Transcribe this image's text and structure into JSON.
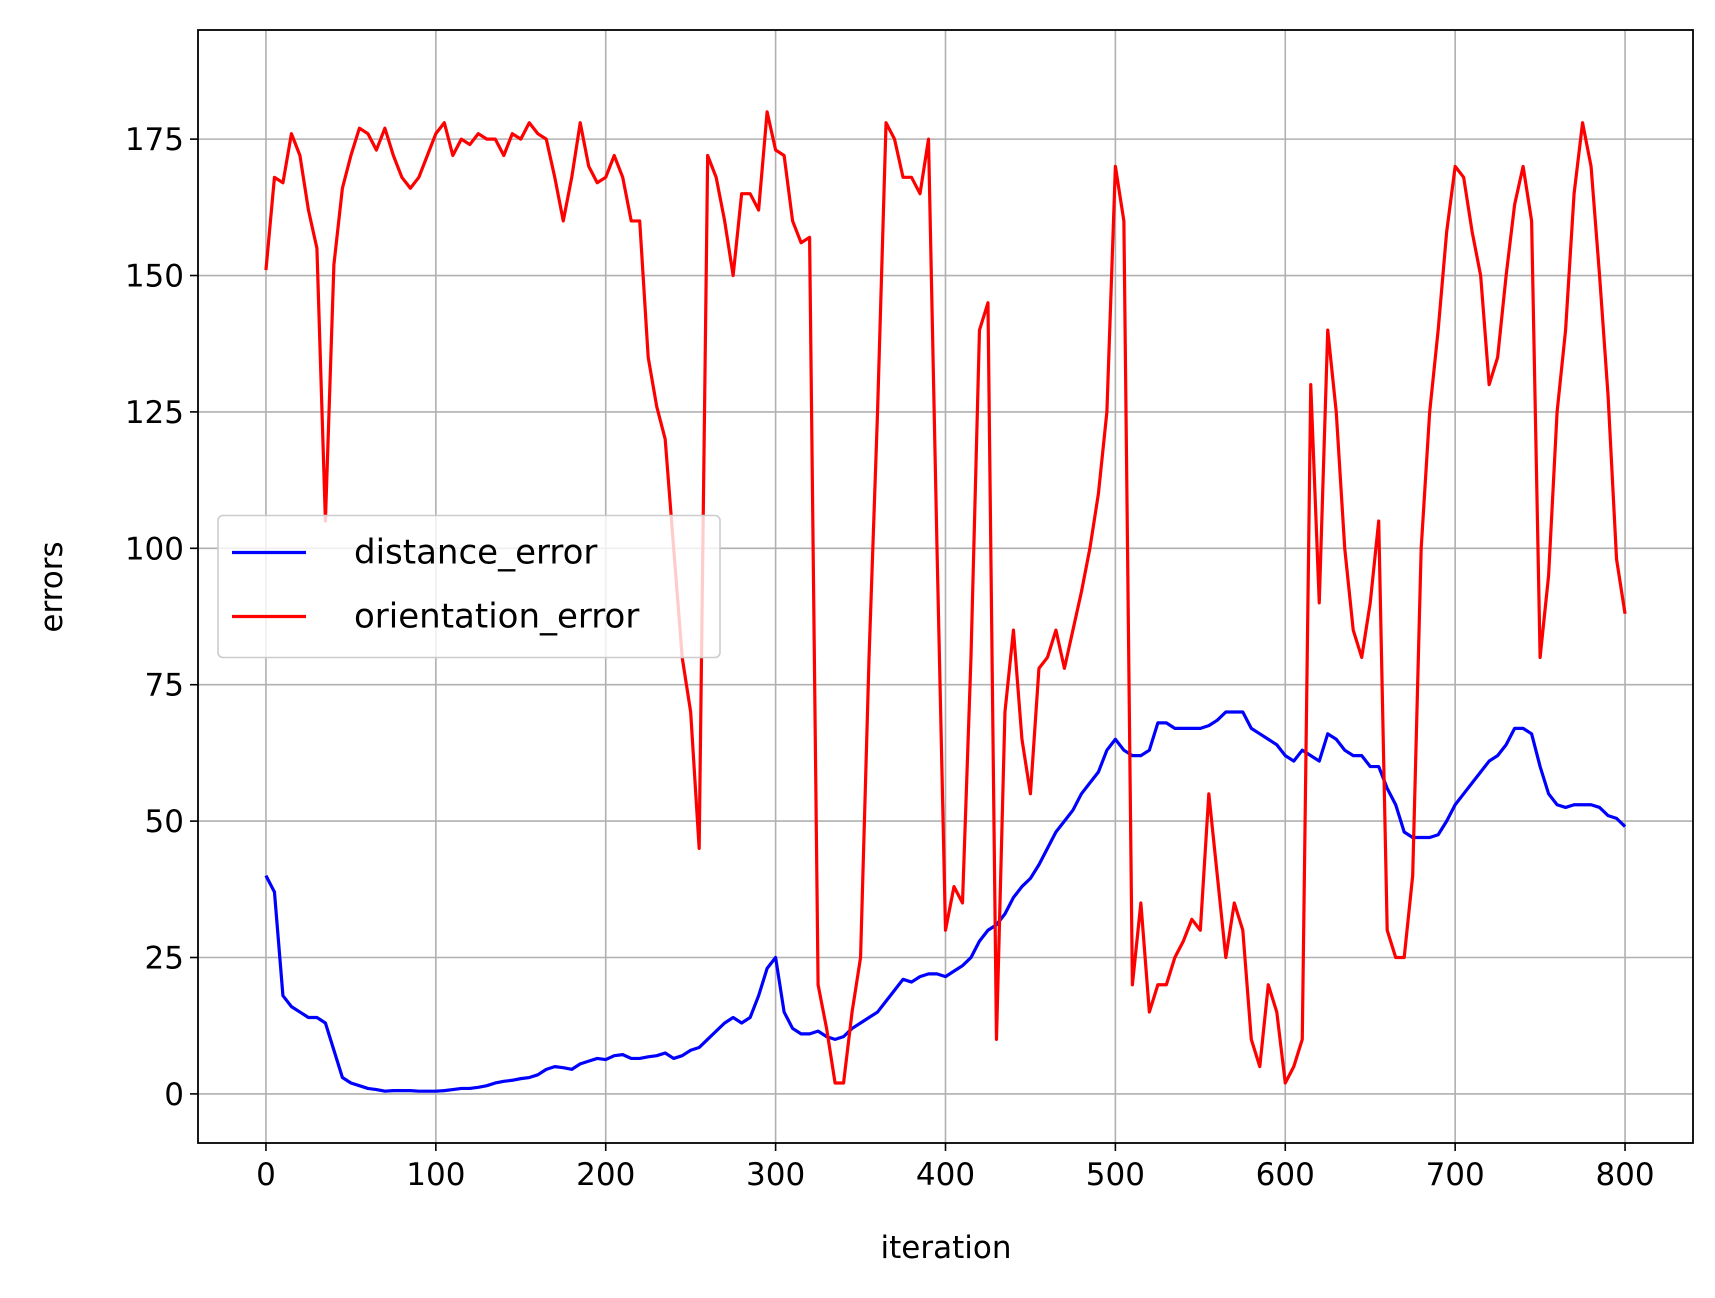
{
  "chart_data": {
    "type": "line",
    "x_label": "iteration",
    "y_label": "errors",
    "xlim": [
      -40,
      840
    ],
    "ylim": [
      -9,
      195
    ],
    "xticks": [
      0,
      100,
      200,
      300,
      400,
      500,
      600,
      700,
      800
    ],
    "yticks": [
      0,
      25,
      50,
      75,
      100,
      125,
      150,
      175
    ],
    "grid": true,
    "legend": "center left",
    "x": [
      0,
      5,
      10,
      15,
      20,
      25,
      30,
      35,
      40,
      45,
      50,
      55,
      60,
      65,
      70,
      75,
      80,
      85,
      90,
      95,
      100,
      105,
      110,
      115,
      120,
      125,
      130,
      135,
      140,
      145,
      150,
      155,
      160,
      165,
      170,
      175,
      180,
      185,
      190,
      195,
      200,
      205,
      210,
      215,
      220,
      225,
      230,
      235,
      240,
      245,
      250,
      255,
      260,
      265,
      270,
      275,
      280,
      285,
      290,
      295,
      300,
      305,
      310,
      315,
      320,
      325,
      330,
      335,
      340,
      345,
      350,
      355,
      360,
      365,
      370,
      375,
      380,
      385,
      390,
      395,
      400,
      405,
      410,
      415,
      420,
      425,
      430,
      435,
      440,
      445,
      450,
      455,
      460,
      465,
      470,
      475,
      480,
      485,
      490,
      495,
      500,
      505,
      510,
      515,
      520,
      525,
      530,
      535,
      540,
      545,
      550,
      555,
      560,
      565,
      570,
      575,
      580,
      585,
      590,
      595,
      600,
      605,
      610,
      615,
      620,
      625,
      630,
      635,
      640,
      645,
      650,
      655,
      660,
      665,
      670,
      675,
      680,
      685,
      690,
      695,
      700,
      705,
      710,
      715,
      720,
      725,
      730,
      735,
      740,
      745,
      750,
      755,
      760,
      765,
      770,
      775,
      780,
      785,
      790,
      795,
      800
    ],
    "series": [
      {
        "name": "distance_error",
        "color": "#0000ff",
        "values": [
          40,
          37,
          18,
          16,
          15,
          14,
          14,
          13,
          8,
          3,
          2,
          1.5,
          1,
          0.8,
          0.5,
          0.6,
          0.6,
          0.6,
          0.5,
          0.5,
          0.5,
          0.6,
          0.8,
          1,
          1,
          1.2,
          1.5,
          2,
          2.3,
          2.5,
          2.8,
          3,
          3.5,
          4.5,
          5,
          4.8,
          4.5,
          5.5,
          6,
          6.5,
          6.3,
          7,
          7.2,
          6.5,
          6.5,
          6.8,
          7,
          7.5,
          6.5,
          7,
          8,
          8.5,
          10,
          11.5,
          13,
          14,
          13,
          14,
          18,
          23,
          25,
          15,
          12,
          11,
          11,
          11.5,
          10.5,
          10,
          10.5,
          12,
          13,
          14,
          15,
          17,
          19,
          21,
          20.5,
          21.5,
          22,
          22,
          21.5,
          22.5,
          23.5,
          25,
          28,
          30,
          31,
          33,
          36,
          38,
          39.5,
          42,
          45,
          48,
          50,
          52,
          55,
          57,
          59,
          63,
          65,
          63,
          62,
          62,
          63,
          68,
          68,
          67,
          67,
          67,
          67,
          67.5,
          68.5,
          70,
          70,
          70,
          67,
          66,
          65,
          64,
          62,
          61,
          63,
          62,
          61,
          66,
          65,
          63,
          62,
          62,
          60,
          60,
          56,
          53,
          48,
          47,
          47,
          47,
          47.5,
          50,
          53,
          55,
          57,
          59,
          61,
          62,
          64,
          67,
          67,
          66,
          60,
          55,
          53,
          52.5,
          53,
          53,
          53,
          52.5,
          51,
          50.5,
          49
        ]
      },
      {
        "name": "orientation_error",
        "color": "#ff0000",
        "values": [
          151,
          168,
          167,
          176,
          172,
          162,
          155,
          105,
          152,
          166,
          172,
          177,
          176,
          173,
          177,
          172,
          168,
          166,
          168,
          172,
          176,
          178,
          172,
          175,
          174,
          176,
          175,
          175,
          172,
          176,
          175,
          178,
          176,
          175,
          168,
          160,
          168,
          178,
          170,
          167,
          168,
          172,
          168,
          160,
          160,
          135,
          126,
          120,
          100,
          80,
          70,
          45,
          172,
          168,
          160,
          150,
          165,
          165,
          162,
          180,
          173,
          172,
          160,
          156,
          157,
          20,
          12,
          2,
          2,
          15,
          25,
          80,
          125,
          178,
          175,
          168,
          168,
          165,
          175,
          100,
          30,
          38,
          35,
          80,
          140,
          145,
          10,
          70,
          85,
          65,
          55,
          78,
          80,
          85,
          78,
          85,
          92,
          100,
          110,
          125,
          170,
          160,
          20,
          35,
          15,
          20,
          20,
          25,
          28,
          32,
          30,
          55,
          40,
          25,
          35,
          30,
          10,
          5,
          20,
          15,
          2,
          5,
          10,
          130,
          90,
          140,
          125,
          100,
          85,
          80,
          90,
          105,
          30,
          25,
          25,
          40,
          100,
          125,
          140,
          158,
          170,
          168,
          158,
          150,
          130,
          135,
          150,
          163,
          170,
          160,
          80,
          95,
          125,
          140,
          165,
          178,
          170,
          150,
          128,
          98,
          88
        ]
      }
    ]
  }
}
